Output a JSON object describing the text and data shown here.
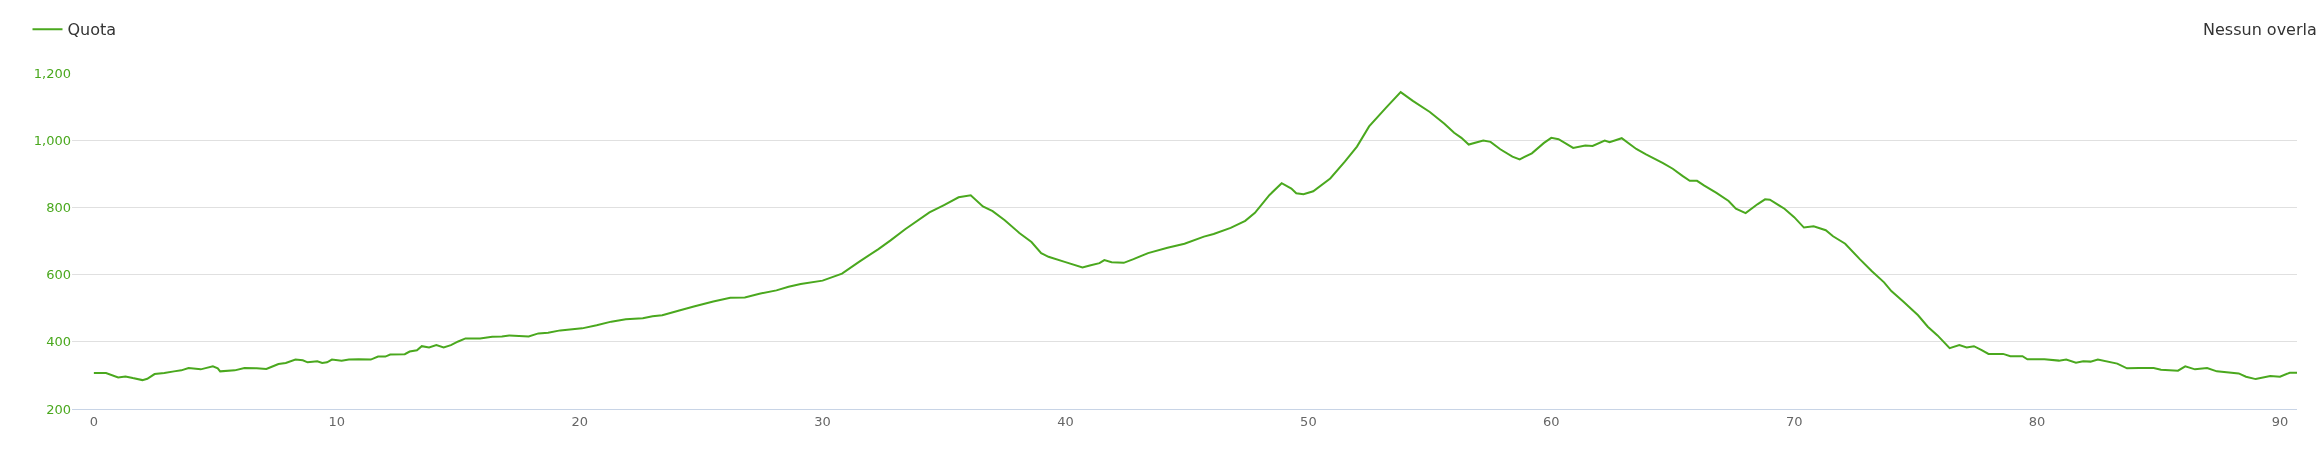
{
  "chart_data": {
    "type": "line",
    "annotations": [
      "Nessun overla"
    ],
    "legend": "top left",
    "grid": "y",
    "marker": "none",
    "line_style": "solid",
    "xlim": [
      -0.9,
      90.7
    ],
    "xticks": [
      0,
      10,
      20,
      30,
      40,
      50,
      60,
      70,
      80,
      90
    ],
    "ylim": [
      200,
      1200
    ],
    "yticks": [
      {
        "value": 200,
        "label": "200"
      },
      {
        "value": 400,
        "label": "400"
      },
      {
        "value": 600,
        "label": "600"
      },
      {
        "value": 800,
        "label": "800"
      },
      {
        "value": 1000,
        "label": "1,000"
      },
      {
        "value": 1200,
        "label": "1,200"
      }
    ],
    "x": [
      0,
      0.5,
      1.0,
      1.3,
      1.6,
      2.0,
      2.2,
      2.5,
      2.9,
      3.3,
      3.6,
      3.9,
      4.4,
      4.9,
      5.1,
      5.2,
      5.8,
      6.2,
      6.7,
      7.1,
      7.3,
      7.6,
      7.9,
      8.3,
      8.6,
      8.8,
      9.2,
      9.4,
      9.6,
      9.8,
      10.2,
      10.5,
      10.9,
      11.4,
      11.7,
      12.0,
      12.2,
      12.8,
      13.0,
      13.3,
      13.5,
      13.8,
      14.1,
      14.4,
      14.7,
      15.0,
      15.3,
      15.9,
      16.4,
      16.8,
      17.1,
      17.9,
      18.3,
      18.7,
      19.2,
      20.1,
      20.7,
      21.3,
      21.9,
      22.6,
      23.0,
      23.4,
      24.1,
      24.7,
      25.5,
      26.2,
      26.8,
      27.4,
      28.1,
      28.6,
      29.1,
      30.0,
      30.8,
      31.5,
      32.3,
      32.8,
      33.4,
      34.4,
      35.0,
      35.6,
      36.1,
      36.6,
      37.0,
      37.5,
      38.1,
      38.6,
      39.0,
      39.3,
      40.0,
      40.7,
      41.0,
      41.4,
      41.6,
      41.9,
      42.4,
      42.8,
      43.4,
      44.2,
      44.9,
      45.7,
      46.1,
      46.8,
      47.4,
      47.8,
      48.4,
      48.9,
      49.3,
      49.5,
      49.8,
      50.2,
      50.9,
      51.5,
      52.0,
      52.5,
      53.2,
      53.8,
      54.3,
      55.0,
      55.6,
      56.0,
      56.3,
      56.6,
      57.2,
      57.5,
      57.9,
      58.4,
      58.7,
      59.2,
      59.7,
      60.0,
      60.3,
      60.9,
      61.4,
      61.7,
      62.2,
      62.4,
      62.9,
      63.5,
      63.9,
      64.6,
      65.0,
      65.4,
      65.7,
      66.0,
      66.3,
      66.8,
      67.3,
      67.6,
      68.0,
      68.5,
      68.8,
      69.0,
      69.6,
      70.0,
      70.4,
      70.8,
      71.3,
      71.6,
      72.1,
      72.7,
      73.2,
      73.7,
      74.0,
      74.5,
      75.1,
      75.5,
      75.9,
      76.4,
      76.8,
      77.1,
      77.4,
      77.7,
      78.0,
      78.6,
      78.9,
      79.4,
      79.6,
      80.3,
      80.9,
      81.2,
      81.6,
      81.9,
      82.2,
      82.5,
      83.3,
      83.7,
      84.2,
      84.8,
      85.1,
      85.8,
      86.1,
      86.5,
      87.0,
      87.4,
      88.3,
      88.6,
      89.0,
      89.6,
      90.0,
      90.4,
      90.7
    ],
    "series": [
      {
        "name": "Quota",
        "color": "#4aa81e",
        "values": [
          307,
          307,
          294,
          297,
          292,
          286,
          290,
          304,
          307,
          312,
          315,
          322,
          318,
          327,
          321,
          312,
          315,
          322,
          321,
          319,
          325,
          334,
          337,
          347,
          345,
          339,
          342,
          337,
          339,
          347,
          344,
          347,
          348,
          347,
          356,
          356,
          362,
          363,
          371,
          375,
          387,
          383,
          390,
          383,
          390,
          401,
          410,
          410,
          415,
          416,
          419,
          416,
          425,
          427,
          434,
          440,
          449,
          460,
          467,
          470,
          476,
          479,
          493,
          505,
          520,
          531,
          532,
          543,
          553,
          564,
          572,
          582,
          603,
          638,
          676,
          702,
          735,
          785,
          807,
          830,
          836,
          803,
          789,
          762,
          724,
          697,
          664,
          653,
          637,
          621,
          627,
          634,
          643,
          637,
          635,
          646,
          664,
          680,
          692,
          713,
          721,
          739,
          760,
          784,
          837,
          872,
          856,
          842,
          839,
          848,
          886,
          936,
          981,
          1041,
          1097,
          1143,
          1117,
          1084,
          1049,
          1022,
          1007,
          987,
          999,
          995,
          973,
          951,
          943,
          961,
          992,
          1007,
          1003,
          977,
          984,
          983,
          999,
          994,
          1006,
          974,
          958,
          932,
          915,
          894,
          879,
          879,
          865,
          843,
          819,
          796,
          783,
          810,
          824,
          823,
          796,
          771,
          740,
          744,
          732,
          714,
          692,
          646,
          610,
          577,
          551,
          519,
          479,
          445,
          419,
          381,
          390,
          383,
          387,
          376,
          364,
          364,
          357,
          357,
          348,
          348,
          344,
          347,
          338,
          342,
          341,
          347,
          335,
          321,
          322,
          322,
          317,
          314,
          327,
          318,
          322,
          312,
          306,
          296,
          289,
          298,
          296,
          308,
          308
        ]
      }
    ]
  }
}
